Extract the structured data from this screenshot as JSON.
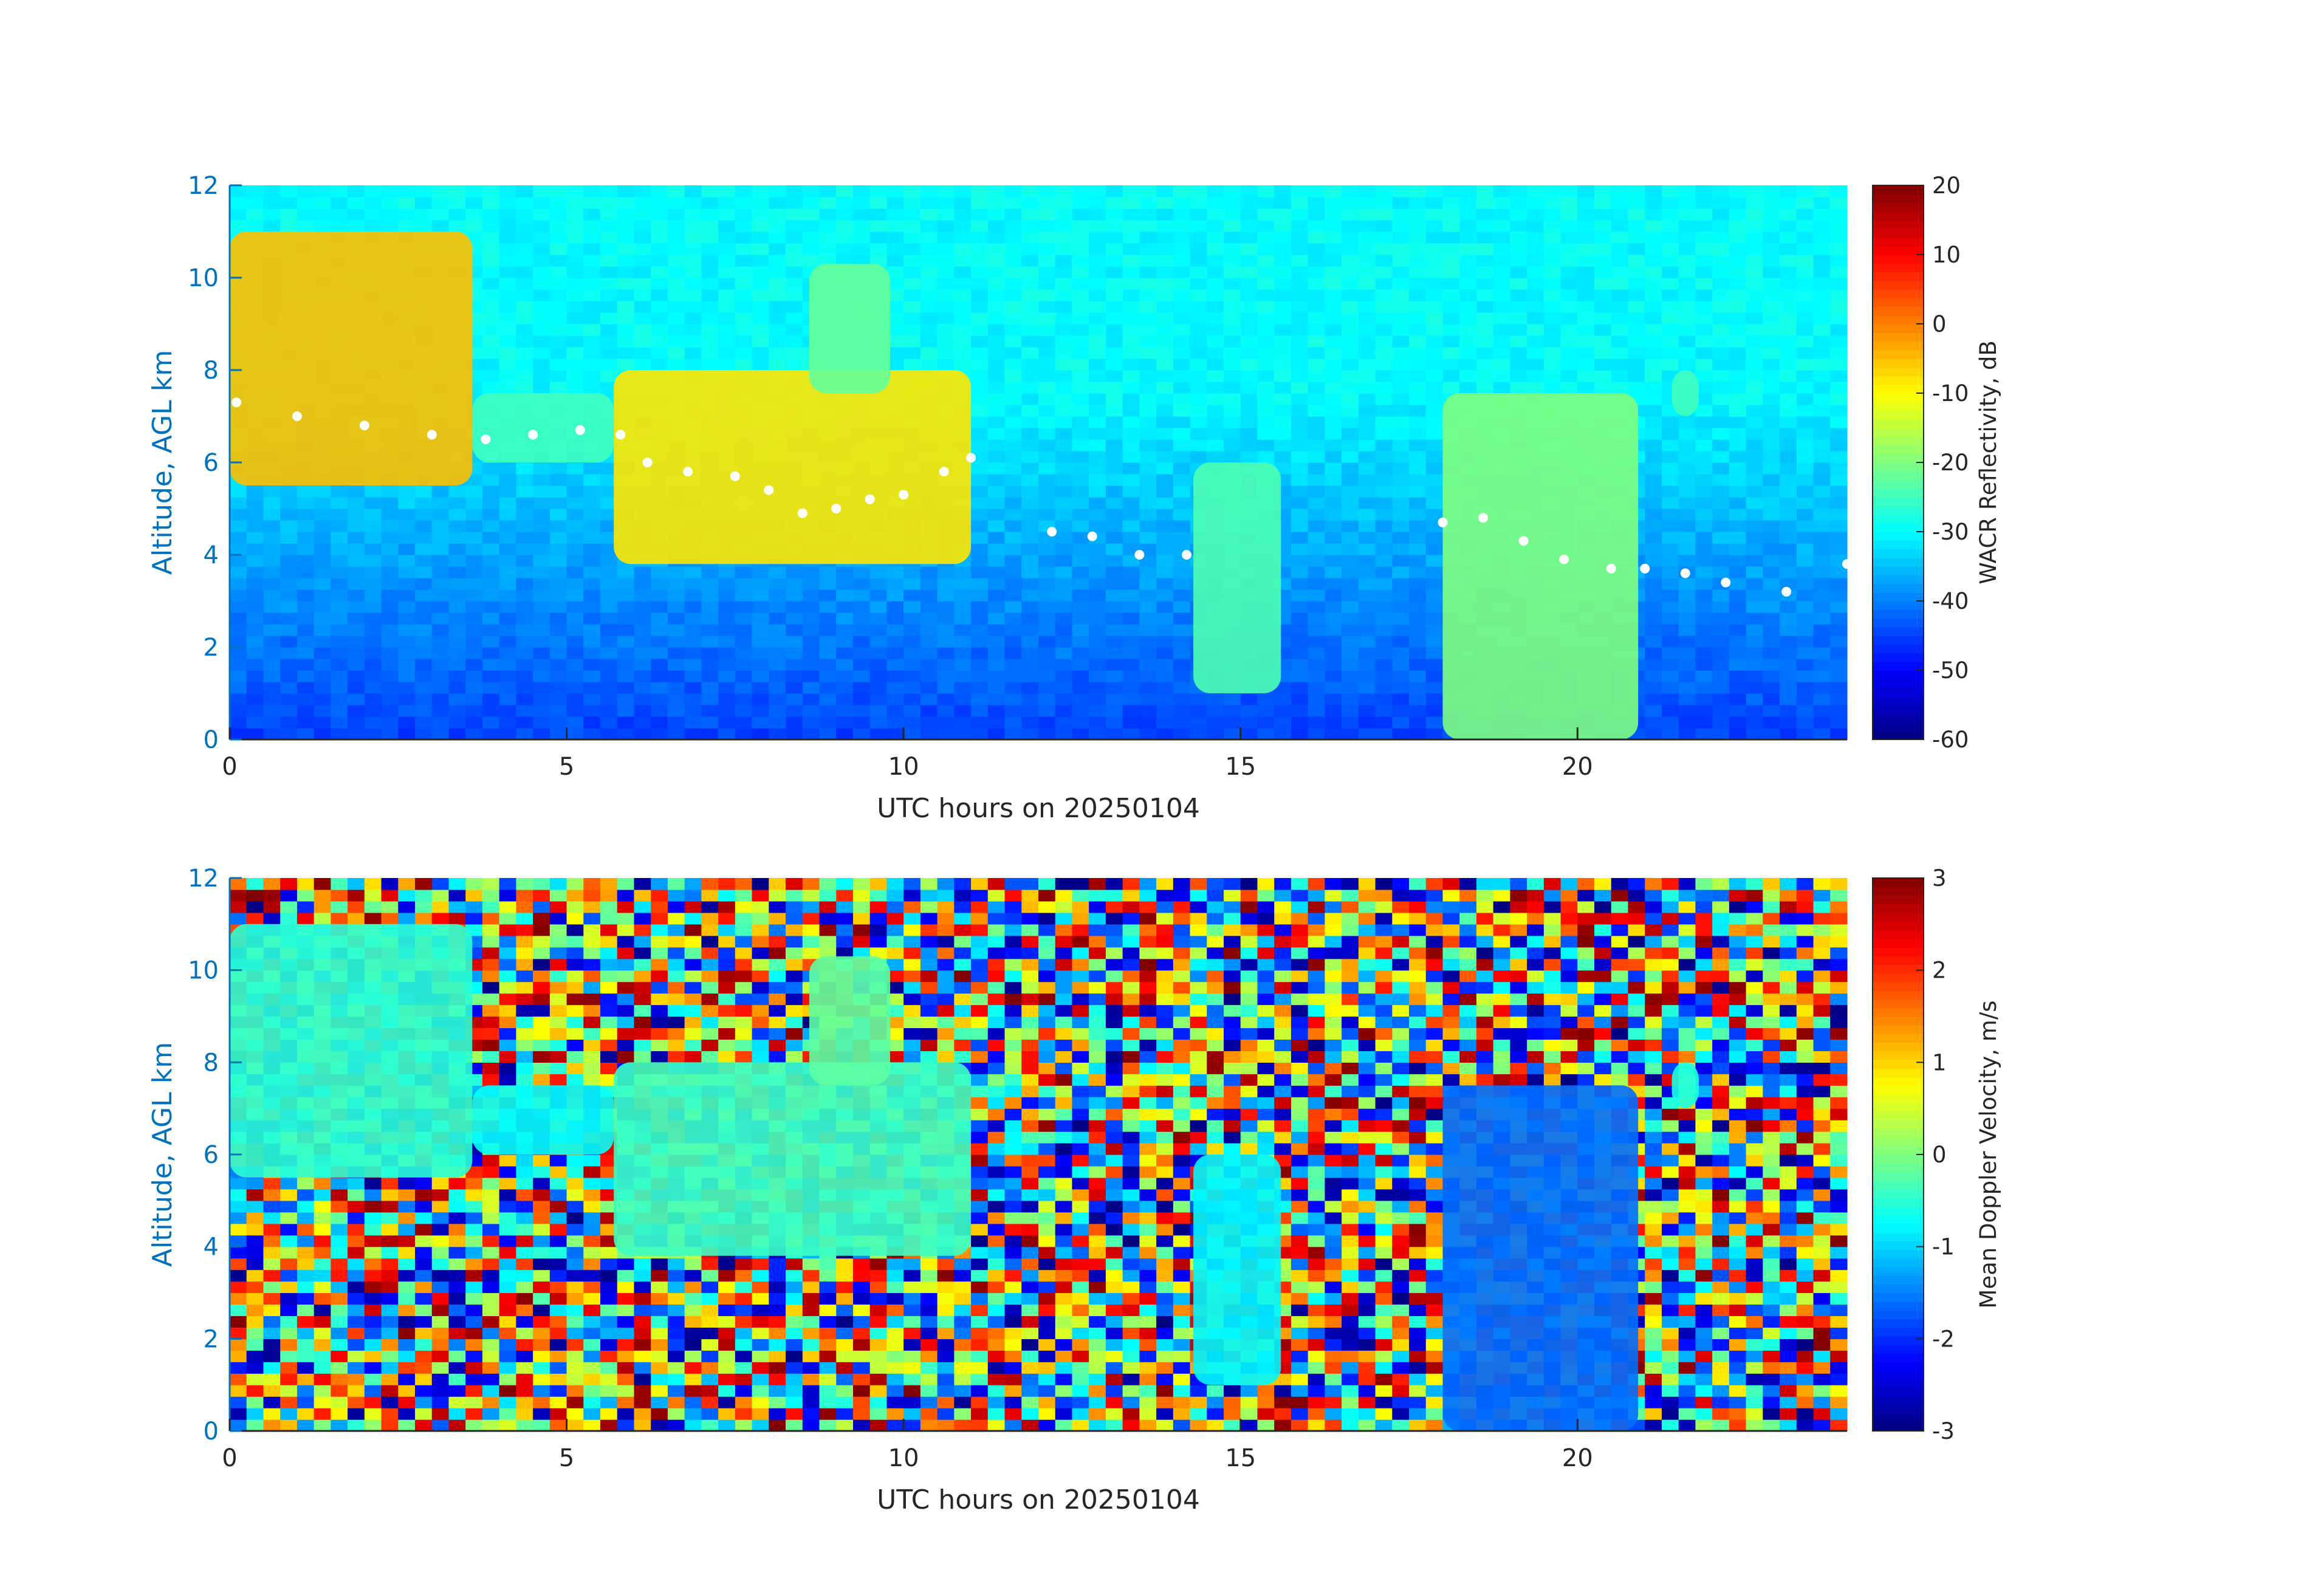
{
  "chart_data": [
    {
      "type": "heatmap",
      "xlabel": "UTC hours on 20250104",
      "ylabel": "Altitude, AGL km",
      "xlim": [
        0,
        24
      ],
      "ylim": [
        0,
        12
      ],
      "xticks": [
        "0",
        "5",
        "10",
        "15",
        "20"
      ],
      "yticks": [
        "0",
        "2",
        "4",
        "6",
        "8",
        "10",
        "12"
      ],
      "colorbar": {
        "label": "WACR Reflectivity, dB",
        "range": [
          -60,
          20
        ],
        "ticks": [
          "20",
          "10",
          "0",
          "-10",
          "-20",
          "-30",
          "-40",
          "-50",
          "-60"
        ],
        "colormap": "jet"
      },
      "background": "noise from about -45 dB near ground to about -30 dB aloft",
      "cloud_features": [
        {
          "x_range": [
            0.0,
            3.6
          ],
          "alt_range": [
            5.5,
            11.0
          ],
          "dbz": -5
        },
        {
          "x_range": [
            3.6,
            5.7
          ],
          "alt_range": [
            6.0,
            7.5
          ],
          "dbz": -25
        },
        {
          "x_range": [
            5.7,
            11.0
          ],
          "alt_range": [
            3.8,
            8.0
          ],
          "dbz": -8
        },
        {
          "x_range": [
            8.6,
            9.8
          ],
          "alt_range": [
            7.5,
            10.3
          ],
          "dbz": -22
        },
        {
          "x_range": [
            14.3,
            15.6
          ],
          "alt_range": [
            1.0,
            6.0
          ],
          "dbz": -24
        },
        {
          "x_range": [
            18.0,
            20.9
          ],
          "alt_range": [
            0.0,
            7.5
          ],
          "dbz": -20
        },
        {
          "x_range": [
            21.4,
            21.8
          ],
          "alt_range": [
            7.0,
            8.0
          ],
          "dbz": -25
        }
      ],
      "cloud_base_points": [
        [
          0.1,
          7.3
        ],
        [
          1.0,
          7.0
        ],
        [
          2.0,
          6.8
        ],
        [
          3.0,
          6.6
        ],
        [
          3.8,
          6.5
        ],
        [
          4.5,
          6.6
        ],
        [
          5.2,
          6.7
        ],
        [
          5.8,
          6.6
        ],
        [
          6.2,
          6.0
        ],
        [
          6.8,
          5.8
        ],
        [
          7.5,
          5.7
        ],
        [
          8.0,
          5.4
        ],
        [
          8.5,
          4.9
        ],
        [
          9.0,
          5.0
        ],
        [
          9.5,
          5.2
        ],
        [
          10.0,
          5.3
        ],
        [
          10.6,
          5.8
        ],
        [
          11.0,
          6.1
        ],
        [
          12.2,
          4.5
        ],
        [
          12.8,
          4.4
        ],
        [
          13.5,
          4.0
        ],
        [
          14.2,
          4.0
        ],
        [
          18.0,
          4.7
        ],
        [
          18.6,
          4.8
        ],
        [
          19.2,
          4.3
        ],
        [
          19.8,
          3.9
        ],
        [
          20.5,
          3.7
        ],
        [
          21.0,
          3.7
        ],
        [
          21.6,
          3.6
        ],
        [
          22.2,
          3.4
        ],
        [
          23.1,
          3.2
        ],
        [
          24.0,
          3.8
        ]
      ]
    },
    {
      "type": "heatmap",
      "xlabel": "UTC hours on 20250104",
      "ylabel": "Altitude, AGL km",
      "xlim": [
        0,
        24
      ],
      "ylim": [
        0,
        12
      ],
      "xticks": [
        "0",
        "5",
        "10",
        "15",
        "20"
      ],
      "yticks": [
        "0",
        "2",
        "4",
        "6",
        "8",
        "10",
        "12"
      ],
      "colorbar": {
        "label": "Mean Doppler Velocity, m/s",
        "range": [
          -3,
          3
        ],
        "ticks": [
          "3",
          "2",
          "1",
          "0",
          "-1",
          "-2",
          "-3"
        ],
        "colormap": "jet"
      },
      "background": "random noise spanning -3 to 3 m/s",
      "cloud_features": [
        {
          "x_range": [
            0.0,
            3.6
          ],
          "alt_range": [
            5.5,
            11.0
          ],
          "velocity": -0.5
        },
        {
          "x_range": [
            3.6,
            5.7
          ],
          "alt_range": [
            6.0,
            7.5
          ],
          "velocity": -0.7
        },
        {
          "x_range": [
            5.7,
            11.0
          ],
          "alt_range": [
            3.8,
            8.0
          ],
          "velocity": -0.4
        },
        {
          "x_range": [
            8.6,
            9.8
          ],
          "alt_range": [
            7.5,
            10.3
          ],
          "velocity": -0.2
        },
        {
          "x_range": [
            14.3,
            15.6
          ],
          "alt_range": [
            1.0,
            6.0
          ],
          "velocity": -0.8
        },
        {
          "x_range": [
            18.0,
            20.9
          ],
          "alt_range": [
            0.0,
            7.5
          ],
          "velocity": -1.6
        },
        {
          "x_range": [
            21.4,
            21.8
          ],
          "alt_range": [
            7.0,
            8.0
          ],
          "velocity": -0.6
        }
      ]
    }
  ]
}
